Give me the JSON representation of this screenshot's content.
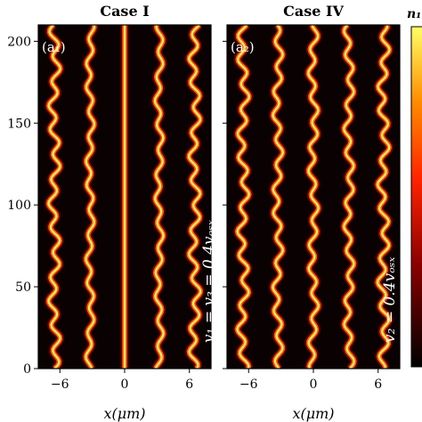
{
  "chart_data": [
    {
      "type": "heatmap",
      "title": "Case I",
      "panel_label": "(a₁)",
      "annotation": "v₁ = v₃ = 0.4vₒₛₓ",
      "xlabel": "x(μm)",
      "ylabel": "",
      "xlim": [
        -8,
        8
      ],
      "ylim": [
        0,
        210
      ],
      "xticks": [
        -6,
        0,
        6
      ],
      "xtick_labels": [
        "−6",
        "0",
        "6"
      ],
      "yticks": [
        0,
        50,
        100,
        150,
        200
      ],
      "ytick_labels": [
        "0",
        "50",
        "100",
        "150",
        "200"
      ],
      "filaments": [
        {
          "x0": -6.5,
          "amplitude": 0.35,
          "straight": false
        },
        {
          "x0": -3.2,
          "amplitude": 0.25,
          "straight": false
        },
        {
          "x0": 0.0,
          "amplitude": 0.0,
          "straight": true
        },
        {
          "x0": 3.2,
          "amplitude": 0.25,
          "straight": false
        },
        {
          "x0": 6.5,
          "amplitude": 0.35,
          "straight": false
        }
      ]
    },
    {
      "type": "heatmap",
      "title": "Case IV",
      "panel_label": "(a₂)",
      "annotation": "v₂ = 0.4vₒₛₓ",
      "xlabel": "x(μm)",
      "ylabel": "",
      "xlim": [
        -8,
        8
      ],
      "ylim": [
        0,
        210
      ],
      "xticks": [
        -6,
        0,
        6
      ],
      "xtick_labels": [
        "−6",
        "0",
        "6"
      ],
      "yticks": [
        0,
        50,
        100,
        150,
        200
      ],
      "ytick_labels": [],
      "filaments": [
        {
          "x0": -6.5,
          "amplitude": 0.35,
          "straight": false
        },
        {
          "x0": -3.3,
          "amplitude": 0.3,
          "straight": false
        },
        {
          "x0": 0.0,
          "amplitude": 0.3,
          "straight": false
        },
        {
          "x0": 3.3,
          "amplitude": 0.3,
          "straight": false
        },
        {
          "x0": 6.5,
          "amplitude": 0.35,
          "straight": false
        }
      ]
    }
  ],
  "colorbar": {
    "label": "n₁",
    "colormap": [
      "#000000",
      "#8b0000",
      "#ff2200",
      "#ff8c00",
      "#ffff66"
    ]
  },
  "colors": {
    "background": "#0a0202",
    "filament_outer": "#b00000",
    "filament_mid": "#ff5a00",
    "filament_core": "#fff06a"
  }
}
